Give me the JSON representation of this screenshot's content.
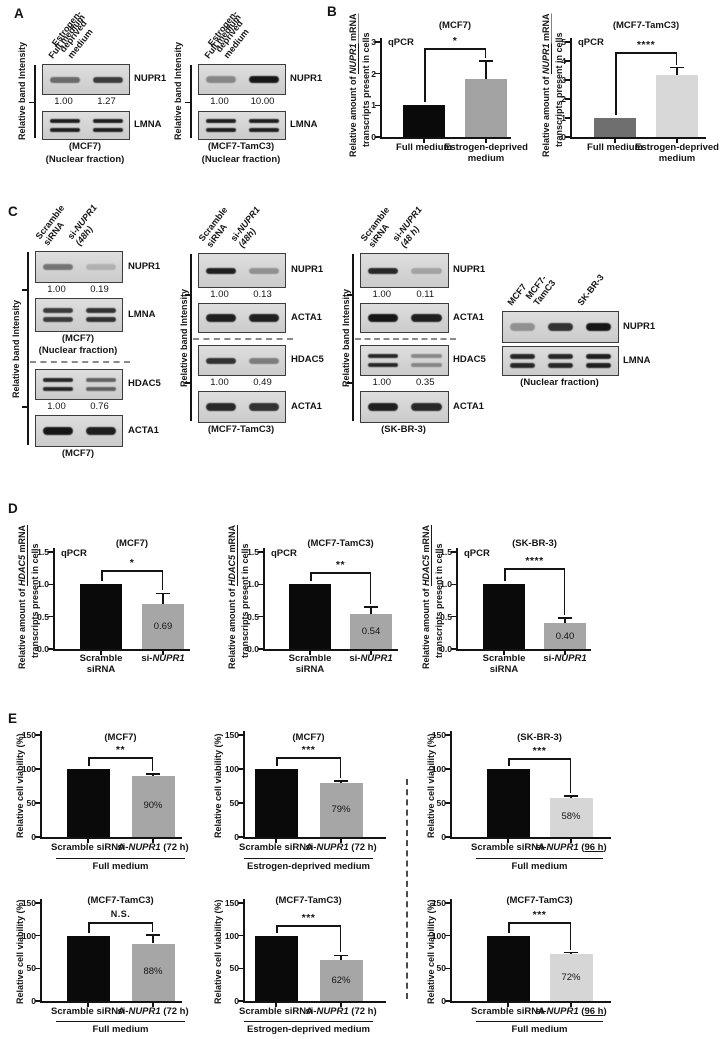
{
  "panels": {
    "a": {
      "label": "A",
      "groups": [
        {
          "lanes": [
            "Full medium",
            "Estrogen-\ndeprived\nmedium"
          ],
          "axis_label": "Relative band Intensity",
          "rows": [
            {
              "protein": "NUPR1"
            },
            {
              "values": [
                "1.00",
                "1.27"
              ]
            },
            {
              "protein": "LMNA"
            },
            {
              "caption": "(MCF7)"
            },
            {
              "caption": "(Nuclear fraction)"
            }
          ]
        },
        {
          "lanes": [
            "Full medium",
            "Estrogen-\ndeprived\nmedium"
          ],
          "axis_label": "Relative band Intensity",
          "rows": [
            {
              "protein": "NUPR1"
            },
            {
              "values": [
                "1.00",
                "10.00"
              ]
            },
            {
              "protein": "LMNA"
            },
            {
              "caption": "(MCF7-TamC3)"
            },
            {
              "caption": "(Nuclear fraction)"
            }
          ]
        }
      ]
    },
    "b": {
      "label": "B"
    },
    "c": {
      "label": "C",
      "groups": [
        {
          "lanes": [
            [
              {
                "t": "Scramble\nsiRNA"
              }
            ],
            [
              {
                "t": "si-"
              },
              {
                "t": "NUPR1",
                "i": true
              },
              {
                "t": "\n"
              },
              {
                "t": "(48h)",
                "i": true
              }
            ]
          ],
          "axis_label": "Relative band Intensity",
          "rows": [
            {
              "protein": "NUPR1"
            },
            {
              "values": [
                "1.00",
                "0.19"
              ]
            },
            {
              "protein": "LMNA"
            },
            {
              "caption": "(MCF7)"
            },
            {
              "caption": "(Nuclear fraction)"
            },
            {
              "divider": true
            },
            {
              "protein": "HDAC5"
            },
            {
              "values": [
                "1.00",
                "0.76"
              ]
            },
            {
              "protein": "ACTA1"
            },
            {
              "caption": "(MCF7)"
            }
          ]
        },
        {
          "lanes": [
            [
              {
                "t": "Scramble\nsiRNA"
              }
            ],
            [
              {
                "t": "si-"
              },
              {
                "t": "NUPR1",
                "i": true
              },
              {
                "t": "\n"
              },
              {
                "t": "(48h)",
                "i": true
              }
            ]
          ],
          "axis_label": "Relative band Intensity",
          "rows": [
            {
              "protein": "NUPR1"
            },
            {
              "values": [
                "1.00",
                "0.13"
              ]
            },
            {
              "protein": "ACTA1"
            },
            {
              "divider": true
            },
            {
              "protein": "HDAC5"
            },
            {
              "values": [
                "1.00",
                "0.49"
              ]
            },
            {
              "protein": "ACTA1"
            },
            {
              "caption": "(MCF7-TamC3)"
            }
          ]
        },
        {
          "lanes": [
            [
              {
                "t": "Scramble\nsiRNA"
              }
            ],
            [
              {
                "t": "si-"
              },
              {
                "t": "NUPR1",
                "i": true
              },
              {
                "t": "\n"
              },
              {
                "t": "(48 h)",
                "i": true
              }
            ]
          ],
          "axis_label": "Relative band Intensity",
          "rows": [
            {
              "protein": "NUPR1"
            },
            {
              "values": [
                "1.00",
                "0.11"
              ]
            },
            {
              "protein": "ACTA1"
            },
            {
              "divider": true
            },
            {
              "protein": "HDAC5"
            },
            {
              "values": [
                "1.00",
                "0.35"
              ]
            },
            {
              "protein": "ACTA1"
            },
            {
              "caption": "(SK-BR-3)"
            }
          ]
        },
        {
          "lanes": [
            "MCF7",
            "MCF7-\nTamC3",
            "SK-BR-3"
          ],
          "axis_label": null,
          "rows": [
            {
              "protein": "NUPR1"
            },
            {
              "spacer": true
            },
            {
              "protein": "LMNA"
            },
            {
              "caption": "(Nuclear fraction)"
            }
          ]
        }
      ]
    },
    "d": {
      "label": "D"
    },
    "e": {
      "label": "E"
    }
  },
  "chart_data": [
    {
      "id": "B-MCF7",
      "type": "bar",
      "title": "(MCF7)",
      "method_label": "qPCR",
      "significance": "*",
      "ylabel": [
        [
          {
            "t": "Relative amount of "
          },
          {
            "t": "NUPR1",
            "i": true,
            "u": true
          },
          {
            "t": " mRNA",
            "u": true
          }
        ],
        [
          {
            "t": "transcripts present in cells"
          }
        ]
      ],
      "categories": [
        "Full medium",
        "Estrogen-deprived\nmedium"
      ],
      "values": [
        1.0,
        1.82
      ],
      "errors": [
        0,
        0.58
      ],
      "bar_labels": [
        "",
        ""
      ],
      "bar_colors": [
        "#0a0a0a",
        "#a3a3a3"
      ],
      "ylim": [
        0,
        3
      ],
      "yticks": [
        "0",
        "1",
        "2",
        "3"
      ],
      "group_label": ""
    },
    {
      "id": "B-MCF7-TamC3",
      "type": "bar",
      "title": "(MCF7-TamC3)",
      "method_label": "qPCR",
      "significance": "****",
      "ylabel": [
        [
          {
            "t": "Relative amount of "
          },
          {
            "t": "NUPR1",
            "i": true,
            "u": true
          },
          {
            "t": " mRNA",
            "u": true
          }
        ],
        [
          {
            "t": "transcripts present in cells"
          }
        ]
      ],
      "categories": [
        "Full medium",
        "Estrogen-deprived\nmedium"
      ],
      "values": [
        1.0,
        3.25
      ],
      "errors": [
        0,
        0.4
      ],
      "bar_labels": [
        "",
        ""
      ],
      "bar_colors": [
        "#6f6f6f",
        "#d8d8d8"
      ],
      "ylim": [
        0,
        5
      ],
      "yticks": [
        "0",
        "1",
        "2",
        "3",
        "4",
        "5"
      ],
      "group_label": ""
    },
    {
      "id": "D-MCF7",
      "type": "bar",
      "title": "(MCF7)",
      "method_label": "qPCR",
      "significance": "*",
      "ylabel": [
        [
          {
            "t": "Relative amount of "
          },
          {
            "t": "HDAC5",
            "i": true,
            "u": true
          },
          {
            "t": " mRNA",
            "u": true
          }
        ],
        [
          {
            "t": "transcripts present in cells"
          }
        ]
      ],
      "categories": [
        "Scramble\nsiRNA",
        [
          {
            "t": "si-"
          },
          {
            "t": "NUPR1",
            "i": true
          }
        ]
      ],
      "values": [
        1.0,
        0.69
      ],
      "errors": [
        0,
        0.17
      ],
      "bar_labels": [
        "",
        "0.69"
      ],
      "bar_colors": [
        "#0a0a0a",
        "#a6a6a6"
      ],
      "ylim": [
        0,
        1.5
      ],
      "yticks": [
        "0.0",
        "0.5",
        "1.0",
        "1.5"
      ],
      "group_label": ""
    },
    {
      "id": "D-MCF7-TamC3",
      "type": "bar",
      "title": "(MCF7-TamC3)",
      "method_label": "qPCR",
      "significance": "**",
      "ylabel": [
        [
          {
            "t": "Relative amount of "
          },
          {
            "t": "HDAC5",
            "i": true,
            "u": true
          },
          {
            "t": " mRNA",
            "u": true
          }
        ],
        [
          {
            "t": "transcripts present in cells"
          }
        ]
      ],
      "categories": [
        "Scramble\nsiRNA",
        [
          {
            "t": "si-"
          },
          {
            "t": "NUPR1",
            "i": true
          }
        ]
      ],
      "values": [
        1.0,
        0.54
      ],
      "errors": [
        0,
        0.11
      ],
      "bar_labels": [
        "",
        "0.54"
      ],
      "bar_colors": [
        "#0a0a0a",
        "#a6a6a6"
      ],
      "ylim": [
        0,
        1.5
      ],
      "yticks": [
        "0.0",
        "0.5",
        "1.0",
        "1.5"
      ],
      "group_label": ""
    },
    {
      "id": "D-SK-BR-3",
      "type": "bar",
      "title": "(SK-BR-3)",
      "method_label": "qPCR",
      "significance": "****",
      "ylabel": [
        [
          {
            "t": "Relative amount of "
          },
          {
            "t": "HDAC5",
            "i": true,
            "u": true
          },
          {
            "t": " mRNA",
            "u": true
          }
        ],
        [
          {
            "t": "transcripts present in cells"
          }
        ]
      ],
      "categories": [
        "Scramble\nsiRNA",
        [
          {
            "t": "si-"
          },
          {
            "t": "NUPR1",
            "i": true
          }
        ]
      ],
      "values": [
        1.0,
        0.4
      ],
      "errors": [
        0,
        0.08
      ],
      "bar_labels": [
        "",
        "0.40"
      ],
      "bar_colors": [
        "#0a0a0a",
        "#a6a6a6"
      ],
      "ylim": [
        0,
        1.5
      ],
      "yticks": [
        "0.0",
        "0.5",
        "1.0",
        "1.5"
      ],
      "group_label": ""
    },
    {
      "id": "E-MCF7-full",
      "type": "bar",
      "title": "(MCF7)",
      "method_label": "",
      "significance": "**",
      "ylabel": [
        [
          {
            "t": "Relative cell viability (%)"
          }
        ]
      ],
      "categories": [
        "Scramble siRNA",
        [
          {
            "t": "si-"
          },
          {
            "t": "NUPR1",
            "i": true
          },
          {
            "t": " (72 h)"
          }
        ]
      ],
      "values": [
        100,
        90
      ],
      "errors": [
        0,
        3
      ],
      "bar_labels": [
        "",
        "90%"
      ],
      "bar_colors": [
        "#0a0a0a",
        "#a6a6a6"
      ],
      "ylim": [
        0,
        150
      ],
      "yticks": [
        "0",
        "50",
        "100",
        "150"
      ],
      "group_label": "Full medium"
    },
    {
      "id": "E-MCF7-estrogen",
      "type": "bar",
      "title": "(MCF7)",
      "method_label": "",
      "significance": "***",
      "ylabel": [
        [
          {
            "t": "Relative cell viability (%)"
          }
        ]
      ],
      "categories": [
        "Scramble siRNA",
        [
          {
            "t": "si-"
          },
          {
            "t": "NUPR1",
            "i": true
          },
          {
            "t": " (72 h)"
          }
        ]
      ],
      "values": [
        100,
        79
      ],
      "errors": [
        0,
        3
      ],
      "bar_labels": [
        "",
        "79%"
      ],
      "bar_colors": [
        "#0a0a0a",
        "#a6a6a6"
      ],
      "ylim": [
        0,
        150
      ],
      "yticks": [
        "0",
        "50",
        "100",
        "150"
      ],
      "group_label": "Estrogen-deprived medium"
    },
    {
      "id": "E-SK-BR-3-full",
      "type": "bar",
      "title": "(SK-BR-3)",
      "method_label": "",
      "significance": "***",
      "ylabel": [
        [
          {
            "t": "Relative cell viability (%)"
          }
        ]
      ],
      "categories": [
        "Scramble siRNA",
        [
          {
            "t": "si-"
          },
          {
            "t": "NUPR1",
            "i": true
          },
          {
            "t": " ("
          },
          {
            "t": "96 h",
            "u": true
          },
          {
            "t": ")"
          }
        ]
      ],
      "values": [
        100,
        58
      ],
      "errors": [
        0,
        2
      ],
      "bar_labels": [
        "",
        "58%"
      ],
      "bar_colors": [
        "#0a0a0a",
        "#d6d6d6"
      ],
      "ylim": [
        0,
        150
      ],
      "yticks": [
        "0",
        "50",
        "100",
        "150"
      ],
      "group_label": "Full medium"
    },
    {
      "id": "E-TamC3-full",
      "type": "bar",
      "title": "(MCF7-TamC3)",
      "method_label": "",
      "significance": "N.S.",
      "ylabel": [
        [
          {
            "t": "Relative cell viability (%)"
          }
        ]
      ],
      "categories": [
        "Scramble siRNA",
        [
          {
            "t": "si-"
          },
          {
            "t": "NUPR1",
            "i": true
          },
          {
            "t": " (72 h)"
          }
        ]
      ],
      "values": [
        100,
        88
      ],
      "errors": [
        0,
        13
      ],
      "bar_labels": [
        "",
        "88%"
      ],
      "bar_colors": [
        "#0a0a0a",
        "#a6a6a6"
      ],
      "ylim": [
        0,
        150
      ],
      "yticks": [
        "0",
        "50",
        "100",
        "150"
      ],
      "group_label": "Full medium"
    },
    {
      "id": "E-TamC3-estrogen",
      "type": "bar",
      "title": "(MCF7-TamC3)",
      "method_label": "",
      "significance": "***",
      "ylabel": [
        [
          {
            "t": "Relative cell viability (%)"
          }
        ]
      ],
      "categories": [
        "Scramble siRNA",
        [
          {
            "t": "si-"
          },
          {
            "t": "NUPR1",
            "i": true
          },
          {
            "t": " (72 h)"
          }
        ]
      ],
      "values": [
        100,
        62
      ],
      "errors": [
        0,
        8
      ],
      "bar_labels": [
        "",
        "62%"
      ],
      "bar_colors": [
        "#0a0a0a",
        "#a6a6a6"
      ],
      "ylim": [
        0,
        150
      ],
      "yticks": [
        "0",
        "50",
        "100",
        "150"
      ],
      "group_label": "Estrogen-deprived medium"
    },
    {
      "id": "E-TamC3-96h",
      "type": "bar",
      "title": "(MCF7-TamC3)",
      "method_label": "",
      "significance": "***",
      "ylabel": [
        [
          {
            "t": "Relative cell viability (%)"
          }
        ]
      ],
      "categories": [
        "Scramble siRNA",
        [
          {
            "t": "si-"
          },
          {
            "t": "NUPR1",
            "i": true
          },
          {
            "t": " ("
          },
          {
            "t": "96 h",
            "u": true
          },
          {
            "t": ")"
          }
        ]
      ],
      "values": [
        100,
        72
      ],
      "errors": [
        0,
        2
      ],
      "bar_labels": [
        "",
        "72%"
      ],
      "bar_colors": [
        "#0a0a0a",
        "#d6d6d6"
      ],
      "ylim": [
        0,
        150
      ],
      "yticks": [
        "0",
        "50",
        "100",
        "150"
      ],
      "group_label": "Full medium"
    }
  ]
}
